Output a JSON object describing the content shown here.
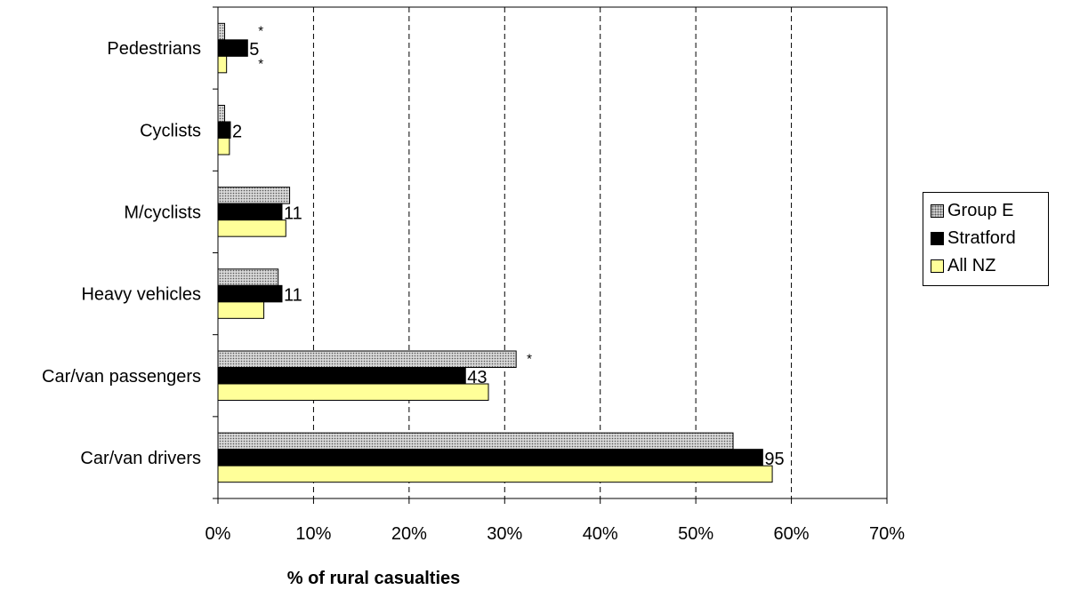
{
  "chart_data": {
    "type": "bar",
    "orientation": "horizontal",
    "categories": [
      "Pedestrians",
      "Cyclists",
      "M/cyclists",
      "Heavy vehicles",
      "Car/van passengers",
      "Car/van drivers"
    ],
    "series": [
      {
        "name": "Group E",
        "values": [
          0.7,
          0.7,
          7.5,
          6.3,
          31.2,
          53.9
        ],
        "color": "#d8d8d8",
        "pattern": "dots"
      },
      {
        "name": "Stratford",
        "values": [
          3.1,
          1.3,
          6.7,
          6.7,
          25.9,
          57.0
        ],
        "color": "#000000"
      },
      {
        "name": "All NZ",
        "values": [
          0.9,
          1.2,
          7.1,
          4.8,
          28.3,
          58.0
        ],
        "color": "#ffff99"
      }
    ],
    "data_labels": [
      "5",
      "2",
      "11",
      "11",
      "43",
      "95"
    ],
    "annotations": [
      {
        "category": "Pedestrians",
        "series": "Group E",
        "text": "*"
      },
      {
        "category": "Pedestrians",
        "series": "All NZ",
        "text": "*"
      },
      {
        "category": "Car/van passengers",
        "series": "Group E",
        "text": "*"
      }
    ],
    "x_ticks": [
      "0%",
      "10%",
      "20%",
      "30%",
      "40%",
      "50%",
      "60%",
      "70%"
    ],
    "xlim": [
      0,
      70
    ],
    "xlabel": "% of rural casualties",
    "ylabel": "",
    "title": "",
    "grid": "vertical dashed",
    "legend_position": "right"
  }
}
